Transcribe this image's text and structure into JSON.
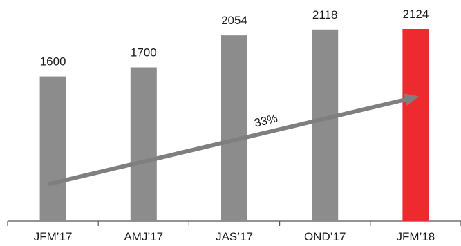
{
  "chart_data": {
    "type": "bar",
    "title": "",
    "xlabel": "",
    "ylabel": "",
    "categories": [
      "JFM’17",
      "AMJ’17",
      "JAS’17",
      "OND’17",
      "JFM’18"
    ],
    "values": [
      1600,
      1700,
      2054,
      2118,
      2124
    ],
    "value_labels": [
      "1600",
      "1700",
      "2054",
      "2118",
      "2124"
    ],
    "ylim": [
      0,
      2124
    ],
    "grid": false,
    "legend": "none",
    "colors": {
      "bar": "#8c8c8c",
      "highlight_bar": "#ee2a2e",
      "axis": "#555555",
      "arrow": "#7f7f7f"
    },
    "highlight_index": 4,
    "annotation": {
      "text": "33%",
      "type": "trend-arrow",
      "from_category": "JFM’17",
      "to_category": "JFM’18"
    }
  }
}
